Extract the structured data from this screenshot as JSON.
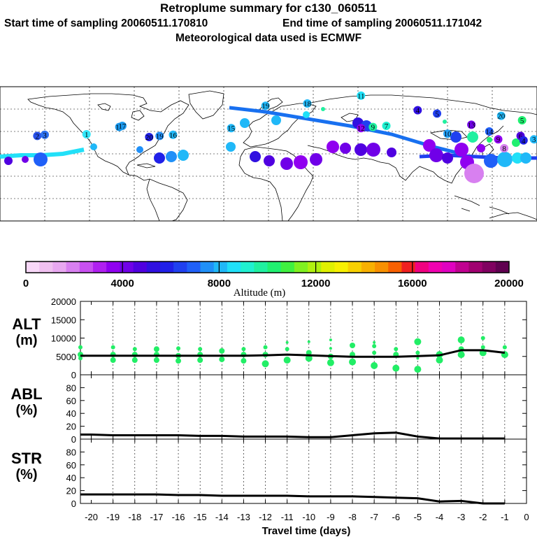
{
  "header": {
    "title": "Retroplume summary for c130_060511",
    "start_label": "Start time of sampling 20060511.170810",
    "end_label": "End time of sampling 20060511.171042",
    "met_label": "Meteorological data used is ECMWF"
  },
  "colorbar": {
    "label": "Altitude (m)",
    "ticks": [
      "0",
      "4000",
      "8000",
      "12000",
      "16000",
      "20000"
    ],
    "min": 0,
    "max": 20000,
    "colors": [
      "#f8d8f8",
      "#f0c0f0",
      "#e8a8f0",
      "#d880f0",
      "#c850f0",
      "#b020f0",
      "#9000f0",
      "#7000e8",
      "#5000e0",
      "#3010e0",
      "#2020e8",
      "#2040f0",
      "#2060f8",
      "#2090f8",
      "#20b8f8",
      "#20e0f8",
      "#20f0d0",
      "#20f0a0",
      "#20f070",
      "#40f040",
      "#80f020",
      "#b0f010",
      "#e0f000",
      "#f8f000",
      "#f8d000",
      "#f8b000",
      "#f89000",
      "#f86000",
      "#f02020",
      "#f00080",
      "#f000b0",
      "#e000c0",
      "#c00090",
      "#a00070",
      "#800060",
      "#600050"
    ]
  },
  "map": {
    "labels": [
      {
        "t": "1",
        "lon": -122,
        "lat": 37.5,
        "c": "#33e6f8"
      },
      {
        "t": "2",
        "lon": -155,
        "lat": 36,
        "c": "#2850e8"
      },
      {
        "t": "3",
        "lon": -150,
        "lat": 37,
        "c": "#2a70f0"
      },
      {
        "t": "15",
        "lon": -100,
        "lat": 44,
        "c": "#1a9af0"
      },
      {
        "t": "17",
        "lon": -98,
        "lat": 45,
        "c": "#1a9af0"
      },
      {
        "t": "20",
        "lon": -80,
        "lat": 35,
        "c": "#2020e8"
      },
      {
        "t": "19",
        "lon": -73,
        "lat": 36,
        "c": "#2090f8"
      },
      {
        "t": "16",
        "lon": -64,
        "lat": 37,
        "c": "#20b8f8"
      },
      {
        "t": "15",
        "lon": -25,
        "lat": 43,
        "c": "#20b8f8"
      },
      {
        "t": "19",
        "lon": -2,
        "lat": 63,
        "c": "#20b8f8"
      },
      {
        "t": "18",
        "lon": 26,
        "lat": 65,
        "c": "#20b8f8"
      },
      {
        "t": "11",
        "lon": 62,
        "lat": 72,
        "c": "#20e0f8"
      },
      {
        "t": "12",
        "lon": 62,
        "lat": 43,
        "c": "#9000f0"
      },
      {
        "t": "9",
        "lon": 70,
        "lat": 44,
        "c": "#20f0a0"
      },
      {
        "t": "7",
        "lon": 79,
        "lat": 45,
        "c": "#20f0d0"
      },
      {
        "t": "4",
        "lon": 100,
        "lat": 59,
        "c": "#3010e0"
      },
      {
        "t": "5",
        "lon": 113,
        "lat": 56,
        "c": "#2040f0"
      },
      {
        "t": "10",
        "lon": 120,
        "lat": 38,
        "c": "#20a0f8"
      },
      {
        "t": "13",
        "lon": 136,
        "lat": 46,
        "c": "#7000e8"
      },
      {
        "t": "14",
        "lon": 148,
        "lat": 40,
        "c": "#2060f8"
      },
      {
        "t": "20",
        "lon": 156,
        "lat": 54,
        "c": "#20b8f8"
      },
      {
        "t": "9",
        "lon": 154,
        "lat": 33,
        "c": "#9000f0"
      },
      {
        "t": "6",
        "lon": 169,
        "lat": 36,
        "c": "#5000e0"
      },
      {
        "t": "8",
        "lon": 158,
        "lat": 25,
        "c": "#d880f0"
      },
      {
        "t": "4",
        "lon": 171,
        "lat": 32,
        "c": "#2020e8"
      },
      {
        "t": "3",
        "lon": 178,
        "lat": 33,
        "c": "#20b8f8"
      },
      {
        "t": "5",
        "lon": 170,
        "lat": 50,
        "c": "#20f070"
      }
    ]
  },
  "chart_data": {
    "type": "line",
    "x_label": "Travel time (days)",
    "x_ticks": [
      "-20",
      "-19",
      "-18",
      "-17",
      "-16",
      "-15",
      "-14",
      "-13",
      "-12",
      "-11",
      "-10",
      "-9",
      "-8",
      "-7",
      "-6",
      "-5",
      "-4",
      "-3",
      "-2",
      "-1",
      "0"
    ],
    "xlim": [
      -20.5,
      0
    ],
    "panels": [
      {
        "name": "ALT",
        "ylabel_line1": "ALT",
        "ylabel_line2": "(m)",
        "ylim": [
          0,
          20000
        ],
        "yticks": [
          "0",
          "5000",
          "10000",
          "15000",
          "20000"
        ],
        "x": [
          -20,
          -19,
          -18,
          -17,
          -16,
          -15,
          -14,
          -13,
          -12,
          -11,
          -10,
          -9,
          -8,
          -7,
          -6,
          -5,
          -4,
          -3,
          -2,
          -1
        ],
        "values": [
          5200,
          5200,
          5200,
          5200,
          5200,
          5200,
          5200,
          5200,
          5300,
          5500,
          5300,
          5100,
          4900,
          4900,
          4900,
          5100,
          5300,
          6700,
          6700,
          6000
        ],
        "scatter": [
          {
            "x": -20.5,
            "y": 7500,
            "r": 3
          },
          {
            "x": -20.5,
            "y": 5500,
            "r": 4
          },
          {
            "x": -20.5,
            "y": 4500,
            "r": 3
          },
          {
            "x": -19,
            "y": 7500,
            "r": 3
          },
          {
            "x": -19,
            "y": 5500,
            "r": 4
          },
          {
            "x": -19,
            "y": 4000,
            "r": 4
          },
          {
            "x": -18,
            "y": 7000,
            "r": 3
          },
          {
            "x": -18,
            "y": 5500,
            "r": 4
          },
          {
            "x": -18,
            "y": 4000,
            "r": 4
          },
          {
            "x": -17,
            "y": 7000,
            "r": 4
          },
          {
            "x": -17,
            "y": 5500,
            "r": 4
          },
          {
            "x": -17,
            "y": 4000,
            "r": 4
          },
          {
            "x": -16,
            "y": 7200,
            "r": 3
          },
          {
            "x": -16,
            "y": 5200,
            "r": 4
          },
          {
            "x": -16,
            "y": 3800,
            "r": 4
          },
          {
            "x": -15,
            "y": 7000,
            "r": 3
          },
          {
            "x": -15,
            "y": 5500,
            "r": 4
          },
          {
            "x": -15,
            "y": 4000,
            "r": 4
          },
          {
            "x": -14,
            "y": 6500,
            "r": 4
          },
          {
            "x": -14,
            "y": 4200,
            "r": 4
          },
          {
            "x": -13,
            "y": 7000,
            "r": 3
          },
          {
            "x": -13,
            "y": 5500,
            "r": 4
          },
          {
            "x": -13,
            "y": 3800,
            "r": 4
          },
          {
            "x": -12,
            "y": 7500,
            "r": 3
          },
          {
            "x": -12,
            "y": 5500,
            "r": 4
          },
          {
            "x": -12,
            "y": 3000,
            "r": 5
          },
          {
            "x": -11,
            "y": 8800,
            "r": 2
          },
          {
            "x": -11,
            "y": 7000,
            "r": 3
          },
          {
            "x": -11,
            "y": 4000,
            "r": 5
          },
          {
            "x": -10,
            "y": 9000,
            "r": 2
          },
          {
            "x": -10,
            "y": 6000,
            "r": 4
          },
          {
            "x": -10,
            "y": 4500,
            "r": 5
          },
          {
            "x": -9,
            "y": 9500,
            "r": 2
          },
          {
            "x": -9,
            "y": 7200,
            "r": 2
          },
          {
            "x": -9,
            "y": 5000,
            "r": 4
          },
          {
            "x": -9,
            "y": 3300,
            "r": 5
          },
          {
            "x": -8,
            "y": 8000,
            "r": 4
          },
          {
            "x": -8,
            "y": 5500,
            "r": 4
          },
          {
            "x": -8,
            "y": 3500,
            "r": 5
          },
          {
            "x": -7,
            "y": 8800,
            "r": 2
          },
          {
            "x": -7,
            "y": 7800,
            "r": 3
          },
          {
            "x": -7,
            "y": 6000,
            "r": 3
          },
          {
            "x": -7,
            "y": 2500,
            "r": 5
          },
          {
            "x": -6,
            "y": 7000,
            "r": 3
          },
          {
            "x": -6,
            "y": 5500,
            "r": 4
          },
          {
            "x": -6,
            "y": 1800,
            "r": 5
          },
          {
            "x": -5,
            "y": 9000,
            "r": 5
          },
          {
            "x": -5,
            "y": 6000,
            "r": 3
          },
          {
            "x": -5,
            "y": 4500,
            "r": 2
          },
          {
            "x": -5,
            "y": 1500,
            "r": 5
          },
          {
            "x": -4,
            "y": 5500,
            "r": 5
          },
          {
            "x": -4,
            "y": 4000,
            "r": 5
          },
          {
            "x": -3,
            "y": 9500,
            "r": 5
          },
          {
            "x": -3,
            "y": 7000,
            "r": 4
          },
          {
            "x": -3,
            "y": 5500,
            "r": 5
          },
          {
            "x": -2,
            "y": 10000,
            "r": 3
          },
          {
            "x": -2,
            "y": 7500,
            "r": 3
          },
          {
            "x": -2,
            "y": 6000,
            "r": 5
          },
          {
            "x": -1,
            "y": 7500,
            "r": 3
          },
          {
            "x": -1,
            "y": 5500,
            "r": 5
          }
        ]
      },
      {
        "name": "ABL",
        "ylabel_line1": "ABL",
        "ylabel_line2": "(%)",
        "ylim": [
          0,
          100
        ],
        "yticks": [
          "0",
          "20",
          "40",
          "60",
          "80"
        ],
        "x": [
          -20,
          -19,
          -18,
          -17,
          -16,
          -15,
          -14,
          -13,
          -12,
          -11,
          -10,
          -9,
          -8,
          -7,
          -6,
          -5,
          -4,
          -3,
          -2,
          -1
        ],
        "values": [
          7,
          6,
          6,
          6,
          6,
          5,
          5,
          4,
          4,
          4,
          3,
          3,
          6,
          9,
          10,
          4,
          1,
          1,
          1,
          1
        ]
      },
      {
        "name": "STR",
        "ylabel_line1": "STR",
        "ylabel_line2": "(%)",
        "ylim": [
          0,
          100
        ],
        "yticks": [
          "0",
          "20",
          "40",
          "60",
          "80"
        ],
        "x": [
          -20,
          -19,
          -18,
          -17,
          -16,
          -15,
          -14,
          -13,
          -12,
          -11,
          -10,
          -9,
          -8,
          -7,
          -6,
          -5,
          -4,
          -3,
          -2,
          -1
        ],
        "values": [
          14,
          14,
          14,
          14,
          13,
          13,
          12,
          12,
          12,
          12,
          11,
          11,
          11,
          10,
          9,
          8,
          3,
          4,
          0,
          0
        ]
      }
    ]
  }
}
